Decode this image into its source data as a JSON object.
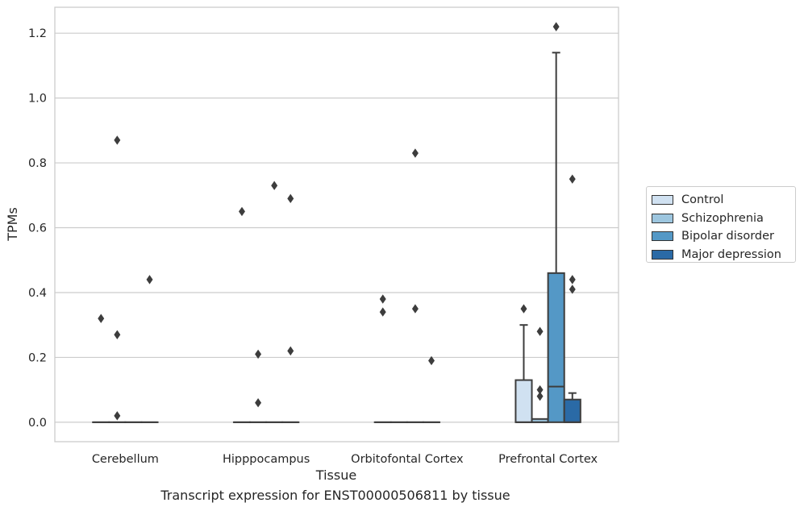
{
  "chart_data": {
    "type": "box",
    "title": "",
    "xlabel": "Tissue",
    "ylabel": "TPMs",
    "caption": "Transcript expression for ENST00000506811 by tissue",
    "ylim": [
      -0.06,
      1.28
    ],
    "yticks": [
      0.0,
      0.2,
      0.4,
      0.6,
      0.8,
      1.0,
      1.2
    ],
    "ytick_labels": [
      "0.0",
      "0.2",
      "0.4",
      "0.6",
      "0.8",
      "1.0",
      "1.2"
    ],
    "grid": "y",
    "legend_placement": "right",
    "categories": [
      "Cerebellum",
      "Hipppocampus",
      "Orbitofontal Cortex",
      "Prefrontal Cortex"
    ],
    "series": [
      {
        "name": "Control",
        "color": "#d0e1f1",
        "boxes": [
          {
            "q1": 0,
            "median": 0,
            "q3": 0,
            "whisker_low": 0,
            "whisker_high": 0,
            "outliers": [
              0.32
            ]
          },
          {
            "q1": 0,
            "median": 0,
            "q3": 0,
            "whisker_low": 0,
            "whisker_high": 0,
            "outliers": [
              0.65
            ]
          },
          {
            "q1": 0,
            "median": 0,
            "q3": 0,
            "whisker_low": 0,
            "whisker_high": 0,
            "outliers": [
              0.38,
              0.34
            ]
          },
          {
            "q1": 0,
            "median": 0,
            "q3": 0.13,
            "whisker_low": 0,
            "whisker_high": 0.3,
            "outliers": [
              0.35
            ]
          }
        ]
      },
      {
        "name": "Schizophrenia",
        "color": "#9dc6df",
        "boxes": [
          {
            "q1": 0,
            "median": 0,
            "q3": 0,
            "whisker_low": 0,
            "whisker_high": 0,
            "outliers": [
              0.87,
              0.27,
              0.02
            ]
          },
          {
            "q1": 0,
            "median": 0,
            "q3": 0,
            "whisker_low": 0,
            "whisker_high": 0,
            "outliers": [
              0.21,
              0.06
            ]
          },
          {
            "q1": 0,
            "median": 0,
            "q3": 0,
            "whisker_low": 0,
            "whisker_high": 0,
            "outliers": []
          },
          {
            "q1": 0,
            "median": 0,
            "q3": 0.01,
            "whisker_low": 0,
            "whisker_high": 0.01,
            "outliers": [
              0.28,
              0.1,
              0.08
            ]
          }
        ]
      },
      {
        "name": "Bipolar disorder",
        "color": "#5498c6",
        "boxes": [
          {
            "q1": 0,
            "median": 0,
            "q3": 0,
            "whisker_low": 0,
            "whisker_high": 0,
            "outliers": []
          },
          {
            "q1": 0,
            "median": 0,
            "q3": 0,
            "whisker_low": 0,
            "whisker_high": 0,
            "outliers": [
              0.73
            ]
          },
          {
            "q1": 0,
            "median": 0,
            "q3": 0,
            "whisker_low": 0,
            "whisker_high": 0,
            "outliers": [
              0.83,
              0.35
            ]
          },
          {
            "q1": 0,
            "median": 0.11,
            "q3": 0.46,
            "whisker_low": 0,
            "whisker_high": 1.14,
            "outliers": [
              1.22
            ]
          }
        ]
      },
      {
        "name": "Major depression",
        "color": "#2a6aa6",
        "boxes": [
          {
            "q1": 0,
            "median": 0,
            "q3": 0,
            "whisker_low": 0,
            "whisker_high": 0,
            "outliers": [
              0.44
            ]
          },
          {
            "q1": 0,
            "median": 0,
            "q3": 0,
            "whisker_low": 0,
            "whisker_high": 0,
            "outliers": [
              0.69,
              0.22
            ]
          },
          {
            "q1": 0,
            "median": 0,
            "q3": 0,
            "whisker_low": 0,
            "whisker_high": 0,
            "outliers": [
              0.19
            ]
          },
          {
            "q1": 0,
            "median": 0,
            "q3": 0.07,
            "whisker_low": 0,
            "whisker_high": 0.09,
            "outliers": [
              0.75,
              0.44,
              0.41
            ]
          }
        ]
      }
    ]
  }
}
